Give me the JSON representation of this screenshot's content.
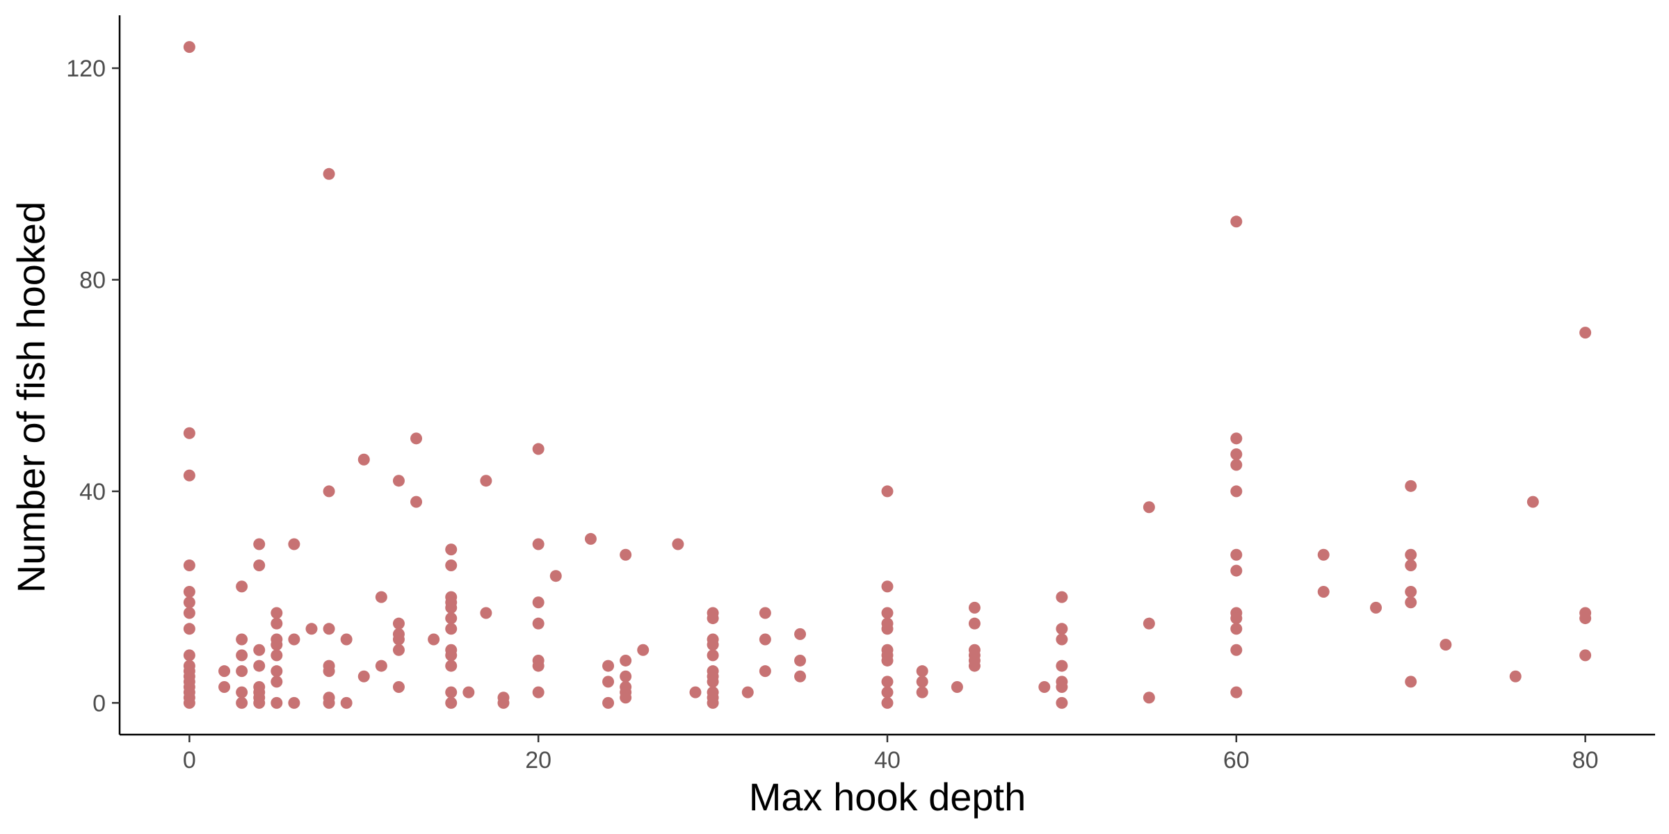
{
  "chart_data": {
    "type": "scatter",
    "title": "",
    "xlabel": "Max hook depth",
    "ylabel": "Number of fish hooked",
    "xlim": [
      -4,
      84
    ],
    "ylim": [
      -6,
      130
    ],
    "x_ticks": [
      0,
      20,
      40,
      60,
      80
    ],
    "y_ticks": [
      0,
      40,
      80,
      120
    ],
    "x_tick_labels": [
      "0",
      "20",
      "40",
      "60",
      "80"
    ],
    "y_tick_labels": [
      "0",
      "40",
      "80",
      "120"
    ],
    "grid": false,
    "legend": "none",
    "point_color": "#C77273",
    "points": [
      {
        "x": 0,
        "y": 124
      },
      {
        "x": 0,
        "y": 51
      },
      {
        "x": 0,
        "y": 43
      },
      {
        "x": 0,
        "y": 26
      },
      {
        "x": 0,
        "y": 21
      },
      {
        "x": 0,
        "y": 19
      },
      {
        "x": 0,
        "y": 17
      },
      {
        "x": 0,
        "y": 14
      },
      {
        "x": 0,
        "y": 9
      },
      {
        "x": 0,
        "y": 7
      },
      {
        "x": 0,
        "y": 6
      },
      {
        "x": 0,
        "y": 5
      },
      {
        "x": 0,
        "y": 4
      },
      {
        "x": 0,
        "y": 3
      },
      {
        "x": 0,
        "y": 2
      },
      {
        "x": 0,
        "y": 1
      },
      {
        "x": 0,
        "y": 0
      },
      {
        "x": 2,
        "y": 6
      },
      {
        "x": 2,
        "y": 3
      },
      {
        "x": 3,
        "y": 22
      },
      {
        "x": 3,
        "y": 12
      },
      {
        "x": 3,
        "y": 9
      },
      {
        "x": 3,
        "y": 6
      },
      {
        "x": 3,
        "y": 2
      },
      {
        "x": 3,
        "y": 0
      },
      {
        "x": 4,
        "y": 30
      },
      {
        "x": 4,
        "y": 26
      },
      {
        "x": 4,
        "y": 10
      },
      {
        "x": 4,
        "y": 7
      },
      {
        "x": 4,
        "y": 3
      },
      {
        "x": 4,
        "y": 2
      },
      {
        "x": 4,
        "y": 1
      },
      {
        "x": 4,
        "y": 0
      },
      {
        "x": 5,
        "y": 17
      },
      {
        "x": 5,
        "y": 15
      },
      {
        "x": 5,
        "y": 12
      },
      {
        "x": 5,
        "y": 11
      },
      {
        "x": 5,
        "y": 9
      },
      {
        "x": 5,
        "y": 6
      },
      {
        "x": 5,
        "y": 4
      },
      {
        "x": 5,
        "y": 0
      },
      {
        "x": 6,
        "y": 30
      },
      {
        "x": 6,
        "y": 12
      },
      {
        "x": 6,
        "y": 0
      },
      {
        "x": 7,
        "y": 14
      },
      {
        "x": 8,
        "y": 100
      },
      {
        "x": 8,
        "y": 40
      },
      {
        "x": 8,
        "y": 14
      },
      {
        "x": 8,
        "y": 7
      },
      {
        "x": 8,
        "y": 6
      },
      {
        "x": 8,
        "y": 1
      },
      {
        "x": 8,
        "y": 0
      },
      {
        "x": 9,
        "y": 12
      },
      {
        "x": 9,
        "y": 0
      },
      {
        "x": 10,
        "y": 46
      },
      {
        "x": 10,
        "y": 5
      },
      {
        "x": 11,
        "y": 20
      },
      {
        "x": 11,
        "y": 7
      },
      {
        "x": 12,
        "y": 42
      },
      {
        "x": 12,
        "y": 15
      },
      {
        "x": 12,
        "y": 13
      },
      {
        "x": 12,
        "y": 12
      },
      {
        "x": 12,
        "y": 10
      },
      {
        "x": 12,
        "y": 3
      },
      {
        "x": 13,
        "y": 50
      },
      {
        "x": 13,
        "y": 38
      },
      {
        "x": 14,
        "y": 12
      },
      {
        "x": 15,
        "y": 29
      },
      {
        "x": 15,
        "y": 26
      },
      {
        "x": 15,
        "y": 20
      },
      {
        "x": 15,
        "y": 19
      },
      {
        "x": 15,
        "y": 18
      },
      {
        "x": 15,
        "y": 16
      },
      {
        "x": 15,
        "y": 14
      },
      {
        "x": 15,
        "y": 10
      },
      {
        "x": 15,
        "y": 9
      },
      {
        "x": 15,
        "y": 7
      },
      {
        "x": 15,
        "y": 2
      },
      {
        "x": 15,
        "y": 0
      },
      {
        "x": 16,
        "y": 2
      },
      {
        "x": 17,
        "y": 42
      },
      {
        "x": 17,
        "y": 17
      },
      {
        "x": 18,
        "y": 1
      },
      {
        "x": 18,
        "y": 0
      },
      {
        "x": 20,
        "y": 48
      },
      {
        "x": 20,
        "y": 30
      },
      {
        "x": 20,
        "y": 19
      },
      {
        "x": 20,
        "y": 15
      },
      {
        "x": 20,
        "y": 8
      },
      {
        "x": 20,
        "y": 7
      },
      {
        "x": 20,
        "y": 2
      },
      {
        "x": 21,
        "y": 24
      },
      {
        "x": 23,
        "y": 31
      },
      {
        "x": 24,
        "y": 7
      },
      {
        "x": 24,
        "y": 4
      },
      {
        "x": 24,
        "y": 0
      },
      {
        "x": 25,
        "y": 28
      },
      {
        "x": 25,
        "y": 8
      },
      {
        "x": 25,
        "y": 5
      },
      {
        "x": 25,
        "y": 3
      },
      {
        "x": 25,
        "y": 2
      },
      {
        "x": 25,
        "y": 1
      },
      {
        "x": 26,
        "y": 10
      },
      {
        "x": 28,
        "y": 30
      },
      {
        "x": 29,
        "y": 2
      },
      {
        "x": 30,
        "y": 17
      },
      {
        "x": 30,
        "y": 16
      },
      {
        "x": 30,
        "y": 12
      },
      {
        "x": 30,
        "y": 11
      },
      {
        "x": 30,
        "y": 9
      },
      {
        "x": 30,
        "y": 6
      },
      {
        "x": 30,
        "y": 5
      },
      {
        "x": 30,
        "y": 4
      },
      {
        "x": 30,
        "y": 2
      },
      {
        "x": 30,
        "y": 1
      },
      {
        "x": 30,
        "y": 0
      },
      {
        "x": 32,
        "y": 2
      },
      {
        "x": 33,
        "y": 17
      },
      {
        "x": 33,
        "y": 12
      },
      {
        "x": 33,
        "y": 6
      },
      {
        "x": 35,
        "y": 13
      },
      {
        "x": 35,
        "y": 8
      },
      {
        "x": 35,
        "y": 5
      },
      {
        "x": 40,
        "y": 40
      },
      {
        "x": 40,
        "y": 22
      },
      {
        "x": 40,
        "y": 17
      },
      {
        "x": 40,
        "y": 15
      },
      {
        "x": 40,
        "y": 14
      },
      {
        "x": 40,
        "y": 10
      },
      {
        "x": 40,
        "y": 9
      },
      {
        "x": 40,
        "y": 8
      },
      {
        "x": 40,
        "y": 4
      },
      {
        "x": 40,
        "y": 2
      },
      {
        "x": 40,
        "y": 0
      },
      {
        "x": 42,
        "y": 6
      },
      {
        "x": 42,
        "y": 4
      },
      {
        "x": 42,
        "y": 2
      },
      {
        "x": 44,
        "y": 3
      },
      {
        "x": 45,
        "y": 18
      },
      {
        "x": 45,
        "y": 15
      },
      {
        "x": 45,
        "y": 10
      },
      {
        "x": 45,
        "y": 9
      },
      {
        "x": 45,
        "y": 8
      },
      {
        "x": 45,
        "y": 7
      },
      {
        "x": 49,
        "y": 3
      },
      {
        "x": 50,
        "y": 20
      },
      {
        "x": 50,
        "y": 14
      },
      {
        "x": 50,
        "y": 12
      },
      {
        "x": 50,
        "y": 7
      },
      {
        "x": 50,
        "y": 4
      },
      {
        "x": 50,
        "y": 3
      },
      {
        "x": 50,
        "y": 0
      },
      {
        "x": 55,
        "y": 37
      },
      {
        "x": 55,
        "y": 15
      },
      {
        "x": 55,
        "y": 1
      },
      {
        "x": 60,
        "y": 91
      },
      {
        "x": 60,
        "y": 50
      },
      {
        "x": 60,
        "y": 47
      },
      {
        "x": 60,
        "y": 45
      },
      {
        "x": 60,
        "y": 40
      },
      {
        "x": 60,
        "y": 28
      },
      {
        "x": 60,
        "y": 25
      },
      {
        "x": 60,
        "y": 17
      },
      {
        "x": 60,
        "y": 16
      },
      {
        "x": 60,
        "y": 14
      },
      {
        "x": 60,
        "y": 10
      },
      {
        "x": 60,
        "y": 2
      },
      {
        "x": 65,
        "y": 28
      },
      {
        "x": 65,
        "y": 21
      },
      {
        "x": 68,
        "y": 18
      },
      {
        "x": 70,
        "y": 41
      },
      {
        "x": 70,
        "y": 28
      },
      {
        "x": 70,
        "y": 26
      },
      {
        "x": 70,
        "y": 21
      },
      {
        "x": 70,
        "y": 19
      },
      {
        "x": 70,
        "y": 4
      },
      {
        "x": 72,
        "y": 11
      },
      {
        "x": 76,
        "y": 5
      },
      {
        "x": 77,
        "y": 38
      },
      {
        "x": 80,
        "y": 70
      },
      {
        "x": 80,
        "y": 17
      },
      {
        "x": 80,
        "y": 16
      },
      {
        "x": 80,
        "y": 9
      }
    ]
  }
}
